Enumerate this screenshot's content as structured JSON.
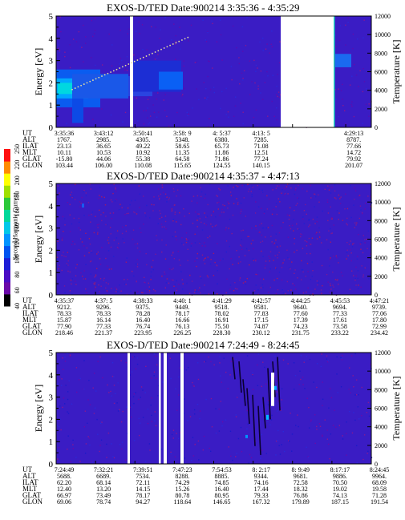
{
  "chart_data": {
    "type": "heatmap",
    "colorbar": {
      "label": "Second Harmonic Current",
      "ticks": [
        "40",
        "60",
        "80",
        "100",
        "120",
        "140",
        "160",
        "180",
        "200",
        "220",
        "250"
      ],
      "colors": [
        "#000000",
        "#6a0aa8",
        "#4a0cc4",
        "#1d1dd6",
        "#0054f0",
        "#0094ff",
        "#00c8e8",
        "#00d89a",
        "#2cc83a",
        "#a0e000",
        "#ffff00",
        "#ff8c00",
        "#ff1010"
      ]
    },
    "panels": [
      {
        "title": "EXOS-D/TED   Date:900214   3:35:36 - 4:35:29",
        "ylabel": "Energy [eV]",
        "yticks": [
          "0",
          "1",
          "2",
          "3",
          "4",
          "5"
        ],
        "ylim": [
          0,
          5
        ],
        "y2label": "Temperature [K]",
        "y2ticks": [
          "0",
          "2000",
          "4000",
          "6000",
          "8000",
          "10000",
          "12000"
        ],
        "y2lim": [
          0,
          12000
        ],
        "row_names": [
          "UT",
          "ALT",
          "ILAT",
          "MLT",
          "GLAT",
          "GLON"
        ],
        "columns": [
          [
            "3:35:36",
            "1767.",
            "23.13",
            "10.11",
            "-15.80",
            "103.44"
          ],
          [
            "3:43:12",
            "2985.",
            "36.65",
            "10.53",
            "44.06",
            "106.00"
          ],
          [
            "3:50:41",
            "4305.",
            "49.22",
            "10.92",
            "55.38",
            "110.08"
          ],
          [
            "3:58: 9",
            "5348.",
            "58.65",
            "11.35",
            "64.58",
            "115.65"
          ],
          [
            "4: 5:37",
            "6380.",
            "65.73",
            "11.86",
            "71.86",
            "124.55"
          ],
          [
            "4:13: 5",
            "7285.",
            "71.08",
            "12.51",
            "77.24",
            "140.15"
          ],
          [
            "",
            "",
            "",
            "",
            "",
            ""
          ],
          [
            "4:29:13",
            "8787.",
            "77.66",
            "14.72",
            "79.92",
            "201.07"
          ]
        ]
      },
      {
        "title": "EXOS-D/TED   Date:900214   4:35:37 - 4:47:13",
        "ylabel": "Energy [eV]",
        "yticks": [
          "0",
          "1",
          "2",
          "3",
          "4",
          "5"
        ],
        "ylim": [
          0,
          5
        ],
        "y2label": "Temperature [K]",
        "y2ticks": [
          "0",
          "2000",
          "4000",
          "6000",
          "8000",
          "10000",
          "12000"
        ],
        "y2lim": [
          0,
          12000
        ],
        "row_names": [
          "UT",
          "ALT",
          "ILAT",
          "MLT",
          "GLAT",
          "GLON"
        ],
        "columns": [
          [
            "4:35:37",
            "9212.",
            "78.33",
            "15.87",
            "77.90",
            "218.46"
          ],
          [
            "4:37: 5",
            "9296.",
            "78.33",
            "16.14",
            "77.33",
            "221.37"
          ],
          [
            "4:38:33",
            "9375.",
            "78.28",
            "16.40",
            "76.74",
            "223.95"
          ],
          [
            "4:40: 1",
            "9449.",
            "78.17",
            "16.66",
            "76.13",
            "226.25"
          ],
          [
            "4:41:29",
            "9518.",
            "78.02",
            "16.91",
            "75.50",
            "228.30"
          ],
          [
            "4:42:57",
            "9581.",
            "77.83",
            "17.15",
            "74.87",
            "230.12"
          ],
          [
            "4:44:25",
            "9640.",
            "77.60",
            "17.39",
            "74.23",
            "231.75"
          ],
          [
            "4:45:53",
            "9694.",
            "77.33",
            "17.61",
            "73.58",
            "233.22"
          ],
          [
            "4:47:21",
            "9739.",
            "77.06",
            "17.80",
            "72.99",
            "234.42"
          ]
        ]
      },
      {
        "title": "EXOS-D/TED   Date:900214   7:24:49 - 8:24:45",
        "ylabel": "Energy [eV]",
        "yticks": [
          "0",
          "1",
          "2",
          "3",
          "4",
          "5"
        ],
        "ylim": [
          0,
          5
        ],
        "y2label": "Temperature [K]",
        "y2ticks": [
          "0",
          "2000",
          "4000",
          "6000",
          "8000",
          "10000",
          "12000"
        ],
        "y2lim": [
          0,
          12000
        ],
        "row_names": [
          "UT",
          "ALT",
          "ILAT",
          "MLT",
          "GLAT",
          "GLON"
        ],
        "columns": [
          [
            "7:24:49",
            "5688.",
            "62.20",
            "12.40",
            "66.97",
            "69.06"
          ],
          [
            "7:32:21",
            "6689.",
            "68.14",
            "13.20",
            "73.49",
            "78.74"
          ],
          [
            "7:39:51",
            "7534.",
            "72.11",
            "14.15",
            "78.17",
            "94.27"
          ],
          [
            "7:47:23",
            "8288.",
            "74.29",
            "15.26",
            "80.78",
            "118.64"
          ],
          [
            "7:54:53",
            "8885.",
            "74.85",
            "16.40",
            "80.95",
            "146.65"
          ],
          [
            "8: 2:17",
            "9344.",
            "74.16",
            "17.44",
            "79.33",
            "167.32"
          ],
          [
            "8: 9:49",
            "9681.",
            "72.58",
            "18.32",
            "76.86",
            "179.89"
          ],
          [
            "8:17:17",
            "9886.",
            "70.50",
            "19.02",
            "74.13",
            "187.15"
          ],
          [
            "8:24:45",
            "9964.",
            "68.09",
            "19.58",
            "71.28",
            "191.54"
          ]
        ]
      }
    ]
  }
}
